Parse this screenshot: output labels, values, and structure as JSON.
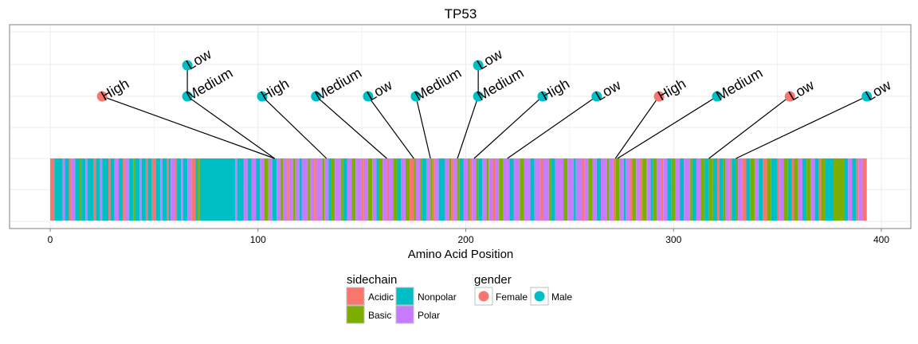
{
  "chart_data": {
    "type": "lollipop",
    "title": "TP53",
    "xlabel": "Amino Acid Position",
    "ylabel": "",
    "xlim": [
      -20,
      413
    ],
    "x_ticks": [
      0,
      100,
      200,
      300,
      400
    ],
    "grid": true,
    "protein_length": 393,
    "mutations": [
      {
        "position": 108,
        "label": "High",
        "gender": "Female",
        "label_x": 25,
        "level": 1
      },
      {
        "position": 108,
        "label": "Medium",
        "gender": "Male",
        "label_x": 66,
        "level": 1
      },
      {
        "position": 108,
        "label": "Low",
        "gender": "Male",
        "label_x": 66,
        "level": 2
      },
      {
        "position": 133,
        "label": "High",
        "gender": "Male",
        "label_x": 102,
        "level": 1
      },
      {
        "position": 162,
        "label": "Medium",
        "gender": "Male",
        "label_x": 128,
        "level": 1
      },
      {
        "position": 175,
        "label": "Low",
        "gender": "Male",
        "label_x": 153,
        "level": 1
      },
      {
        "position": 183,
        "label": "Medium",
        "gender": "Male",
        "label_x": 176,
        "level": 1
      },
      {
        "position": 196,
        "label": "Medium",
        "gender": "Male",
        "label_x": 206,
        "level": 1
      },
      {
        "position": 196,
        "label": "Low",
        "gender": "Male",
        "label_x": 206,
        "level": 2
      },
      {
        "position": 204,
        "label": "High",
        "gender": "Male",
        "label_x": 237,
        "level": 1
      },
      {
        "position": 220,
        "label": "Low",
        "gender": "Male",
        "label_x": 263,
        "level": 1
      },
      {
        "position": 272,
        "label": "High",
        "gender": "Female",
        "label_x": 293,
        "level": 1
      },
      {
        "position": 273,
        "label": "Medium",
        "gender": "Male",
        "label_x": 321,
        "level": 1
      },
      {
        "position": 317,
        "label": "Low",
        "gender": "Female",
        "label_x": 356,
        "level": 1
      },
      {
        "position": 330,
        "label": "Low",
        "gender": "Male",
        "label_x": 393,
        "level": 1
      }
    ],
    "sidechain_segments": [
      [
        0,
        2,
        "Acidic"
      ],
      [
        2,
        6,
        "Nonpolar"
      ],
      [
        6,
        7,
        "Polar"
      ],
      [
        7,
        9,
        "Nonpolar"
      ],
      [
        9,
        10,
        "Acidic"
      ],
      [
        10,
        12,
        "Polar"
      ],
      [
        12,
        14,
        "Nonpolar"
      ],
      [
        14,
        15,
        "Basic"
      ],
      [
        15,
        17,
        "Nonpolar"
      ],
      [
        17,
        18,
        "Polar"
      ],
      [
        18,
        21,
        "Nonpolar"
      ],
      [
        21,
        22,
        "Acidic"
      ],
      [
        22,
        24,
        "Nonpolar"
      ],
      [
        24,
        25,
        "Polar"
      ],
      [
        25,
        28,
        "Nonpolar"
      ],
      [
        28,
        29,
        "Acidic"
      ],
      [
        29,
        31,
        "Nonpolar"
      ],
      [
        31,
        33,
        "Polar"
      ],
      [
        33,
        35,
        "Nonpolar"
      ],
      [
        35,
        36,
        "Acidic"
      ],
      [
        36,
        38,
        "Polar"
      ],
      [
        38,
        40,
        "Nonpolar"
      ],
      [
        40,
        41,
        "Basic"
      ],
      [
        41,
        43,
        "Nonpolar"
      ],
      [
        43,
        44,
        "Polar"
      ],
      [
        44,
        46,
        "Nonpolar"
      ],
      [
        46,
        47,
        "Acidic"
      ],
      [
        47,
        49,
        "Nonpolar"
      ],
      [
        49,
        51,
        "Acidic"
      ],
      [
        51,
        53,
        "Nonpolar"
      ],
      [
        53,
        54,
        "Polar"
      ],
      [
        54,
        56,
        "Nonpolar"
      ],
      [
        56,
        57,
        "Acidic"
      ],
      [
        57,
        58,
        "Nonpolar"
      ],
      [
        58,
        60,
        "Polar"
      ],
      [
        60,
        61,
        "Acidic"
      ],
      [
        61,
        63,
        "Nonpolar"
      ],
      [
        63,
        64,
        "Polar"
      ],
      [
        64,
        66,
        "Nonpolar"
      ],
      [
        66,
        68,
        "Polar"
      ],
      [
        68,
        70,
        "Acidic"
      ],
      [
        70,
        71,
        "Nonpolar"
      ],
      [
        71,
        72,
        "Basic"
      ],
      [
        72,
        89,
        "Nonpolar"
      ],
      [
        89,
        90,
        "Polar"
      ],
      [
        90,
        93,
        "Nonpolar"
      ],
      [
        93,
        95,
        "Polar"
      ],
      [
        95,
        97,
        "Nonpolar"
      ],
      [
        97,
        99,
        "Polar"
      ],
      [
        99,
        101,
        "Nonpolar"
      ],
      [
        101,
        103,
        "Polar"
      ],
      [
        103,
        105,
        "Basic"
      ],
      [
        105,
        107,
        "Polar"
      ],
      [
        107,
        109,
        "Nonpolar"
      ],
      [
        109,
        111,
        "Polar"
      ],
      [
        111,
        112,
        "Basic"
      ],
      [
        112,
        114,
        "Polar"
      ],
      [
        114,
        115,
        "Acidic"
      ],
      [
        115,
        117,
        "Polar"
      ],
      [
        117,
        118,
        "Basic"
      ],
      [
        118,
        120,
        "Polar"
      ],
      [
        120,
        121,
        "Nonpolar"
      ],
      [
        121,
        124,
        "Polar"
      ],
      [
        124,
        125,
        "Basic"
      ],
      [
        125,
        127,
        "Polar"
      ],
      [
        127,
        128,
        "Acidic"
      ],
      [
        128,
        131,
        "Polar"
      ],
      [
        131,
        132,
        "Basic"
      ],
      [
        132,
        134,
        "Polar"
      ],
      [
        134,
        135,
        "Nonpolar"
      ],
      [
        135,
        137,
        "Basic"
      ],
      [
        137,
        140,
        "Polar"
      ],
      [
        140,
        141,
        "Basic"
      ],
      [
        141,
        143,
        "Nonpolar"
      ],
      [
        143,
        145,
        "Polar"
      ],
      [
        145,
        147,
        "Basic"
      ],
      [
        147,
        150,
        "Polar"
      ],
      [
        150,
        151,
        "Acidic"
      ],
      [
        151,
        153,
        "Polar"
      ],
      [
        153,
        155,
        "Basic"
      ],
      [
        155,
        157,
        "Polar"
      ],
      [
        157,
        158,
        "Nonpolar"
      ],
      [
        158,
        160,
        "Basic"
      ],
      [
        160,
        162,
        "Polar"
      ],
      [
        162,
        163,
        "Acidic"
      ],
      [
        163,
        165,
        "Polar"
      ],
      [
        165,
        167,
        "Basic"
      ],
      [
        167,
        169,
        "Nonpolar"
      ],
      [
        169,
        171,
        "Polar"
      ],
      [
        171,
        173,
        "Basic"
      ],
      [
        173,
        175,
        "Acidic"
      ],
      [
        175,
        176,
        "Basic"
      ],
      [
        176,
        178,
        "Polar"
      ],
      [
        178,
        179,
        "Basic"
      ],
      [
        179,
        181,
        "Nonpolar"
      ],
      [
        181,
        183,
        "Polar"
      ],
      [
        183,
        184,
        "Basic"
      ],
      [
        184,
        185,
        "Acidic"
      ],
      [
        185,
        187,
        "Polar"
      ],
      [
        187,
        190,
        "Nonpolar"
      ],
      [
        190,
        192,
        "Polar"
      ],
      [
        192,
        193,
        "Basic"
      ],
      [
        193,
        194,
        "Acidic"
      ],
      [
        194,
        196,
        "Polar"
      ],
      [
        196,
        197,
        "Basic"
      ],
      [
        197,
        199,
        "Nonpolar"
      ],
      [
        199,
        201,
        "Polar"
      ],
      [
        201,
        202,
        "Basic"
      ],
      [
        202,
        203,
        "Acidic"
      ],
      [
        203,
        205,
        "Polar"
      ],
      [
        205,
        206,
        "Basic"
      ],
      [
        206,
        208,
        "Nonpolar"
      ],
      [
        208,
        210,
        "Polar"
      ],
      [
        210,
        211,
        "Basic"
      ],
      [
        211,
        213,
        "Polar"
      ],
      [
        213,
        214,
        "Acidic"
      ],
      [
        214,
        216,
        "Polar"
      ],
      [
        216,
        218,
        "Basic"
      ],
      [
        218,
        221,
        "Polar"
      ],
      [
        221,
        223,
        "Nonpolar"
      ],
      [
        223,
        226,
        "Polar"
      ],
      [
        226,
        228,
        "Basic"
      ],
      [
        228,
        231,
        "Polar"
      ],
      [
        231,
        233,
        "Nonpolar"
      ],
      [
        233,
        236,
        "Polar"
      ],
      [
        236,
        237,
        "Acidic"
      ],
      [
        237,
        240,
        "Polar"
      ],
      [
        240,
        241,
        "Basic"
      ],
      [
        241,
        243,
        "Nonpolar"
      ],
      [
        243,
        247,
        "Polar"
      ],
      [
        247,
        249,
        "Basic"
      ],
      [
        249,
        252,
        "Polar"
      ],
      [
        252,
        253,
        "Nonpolar"
      ],
      [
        253,
        256,
        "Polar"
      ],
      [
        256,
        257,
        "Acidic"
      ],
      [
        257,
        259,
        "Polar"
      ],
      [
        259,
        261,
        "Basic"
      ],
      [
        261,
        263,
        "Polar"
      ],
      [
        263,
        265,
        "Nonpolar"
      ],
      [
        265,
        268,
        "Polar"
      ],
      [
        268,
        269,
        "Basic"
      ],
      [
        269,
        271,
        "Polar"
      ],
      [
        271,
        272,
        "Acidic"
      ],
      [
        272,
        274,
        "Basic"
      ],
      [
        274,
        276,
        "Polar"
      ],
      [
        276,
        277,
        "Nonpolar"
      ],
      [
        277,
        279,
        "Polar"
      ],
      [
        279,
        280,
        "Acidic"
      ],
      [
        280,
        282,
        "Basic"
      ],
      [
        282,
        284,
        "Polar"
      ],
      [
        284,
        285,
        "Acidic"
      ],
      [
        285,
        287,
        "Basic"
      ],
      [
        287,
        289,
        "Polar"
      ],
      [
        289,
        290,
        "Nonpolar"
      ],
      [
        290,
        292,
        "Basic"
      ],
      [
        292,
        294,
        "Polar"
      ],
      [
        294,
        295,
        "Acidic"
      ],
      [
        295,
        297,
        "Polar"
      ],
      [
        297,
        299,
        "Nonpolar"
      ],
      [
        299,
        301,
        "Basic"
      ],
      [
        301,
        303,
        "Polar"
      ],
      [
        303,
        305,
        "Nonpolar"
      ],
      [
        305,
        308,
        "Polar"
      ],
      [
        308,
        309,
        "Basic"
      ],
      [
        309,
        311,
        "Nonpolar"
      ],
      [
        311,
        313,
        "Polar"
      ],
      [
        313,
        315,
        "Basic"
      ],
      [
        315,
        317,
        "Nonpolar"
      ],
      [
        317,
        319,
        "Basic"
      ],
      [
        319,
        321,
        "Nonpolar"
      ],
      [
        321,
        322,
        "Acidic"
      ],
      [
        322,
        324,
        "Nonpolar"
      ],
      [
        324,
        325,
        "Basic"
      ],
      [
        325,
        327,
        "Polar"
      ],
      [
        327,
        328,
        "Acidic"
      ],
      [
        328,
        330,
        "Nonpolar"
      ],
      [
        330,
        331,
        "Basic"
      ],
      [
        331,
        333,
        "Polar"
      ],
      [
        333,
        335,
        "Acidic"
      ],
      [
        335,
        337,
        "Nonpolar"
      ],
      [
        337,
        339,
        "Basic"
      ],
      [
        339,
        341,
        "Polar"
      ],
      [
        341,
        343,
        "Nonpolar"
      ],
      [
        343,
        345,
        "Acidic"
      ],
      [
        345,
        347,
        "Basic"
      ],
      [
        347,
        350,
        "Nonpolar"
      ],
      [
        350,
        351,
        "Acidic"
      ],
      [
        351,
        353,
        "Polar"
      ],
      [
        353,
        355,
        "Basic"
      ],
      [
        355,
        357,
        "Nonpolar"
      ],
      [
        357,
        358,
        "Acidic"
      ],
      [
        358,
        360,
        "Basic"
      ],
      [
        360,
        362,
        "Polar"
      ],
      [
        362,
        364,
        "Nonpolar"
      ],
      [
        364,
        366,
        "Basic"
      ],
      [
        366,
        368,
        "Polar"
      ],
      [
        368,
        370,
        "Nonpolar"
      ],
      [
        370,
        371,
        "Acidic"
      ],
      [
        371,
        373,
        "Basic"
      ],
      [
        373,
        377,
        "Nonpolar"
      ],
      [
        377,
        382,
        "Basic"
      ],
      [
        382,
        384,
        "Nonpolar"
      ],
      [
        384,
        386,
        "Polar"
      ],
      [
        386,
        388,
        "Nonpolar"
      ],
      [
        388,
        389,
        "Acidic"
      ],
      [
        389,
        391,
        "Polar"
      ],
      [
        391,
        393,
        "Acidic"
      ]
    ],
    "legends": {
      "sidechain": {
        "title": "sidechain",
        "items": [
          {
            "name": "Acidic",
            "color": "#F8766D"
          },
          {
            "name": "Basic",
            "color": "#7CAE00"
          },
          {
            "name": "Nonpolar",
            "color": "#00BFC4"
          },
          {
            "name": "Polar",
            "color": "#C77CFF"
          }
        ]
      },
      "gender": {
        "title": "gender",
        "items": [
          {
            "name": "Female",
            "color": "#F8766D"
          },
          {
            "name": "Male",
            "color": "#00BFC4"
          }
        ]
      }
    },
    "legend_position": "bottom"
  }
}
